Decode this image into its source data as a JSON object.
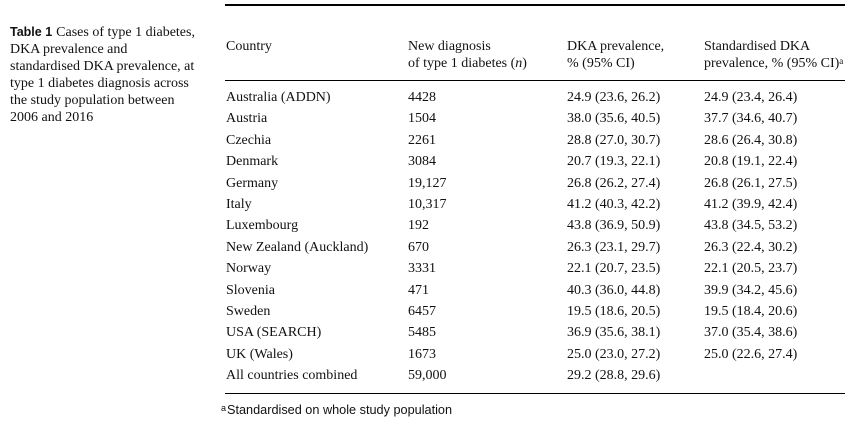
{
  "caption": {
    "label": "Table 1",
    "text": "Cases of type 1 diabetes, DKA prevalence and standardised DKA prevalence, at type 1 diabetes diagnosis across the study population between 2006 and 2016"
  },
  "table": {
    "headers": {
      "country": "Country",
      "new_diagnoses": {
        "line1": "New diagnosis",
        "line2_before": "of type 1 diabetes (",
        "line2_italic": "n",
        "line2_after": ")"
      },
      "dka_prevalence": {
        "line1": "DKA prevalence,",
        "line2": "% (95% CI)"
      },
      "standardised_dka_prevalence": {
        "line1": "Standardised DKA",
        "line2": "prevalence, % (95% CI)",
        "footnote_marker": "a"
      }
    },
    "rows": [
      {
        "country": "Australia (ADDN)",
        "new_diagnoses": "4428",
        "dka_prevalence": "24.9 (23.6, 26.2)",
        "standardised_dka_prevalence": "24.9 (23.4, 26.4)"
      },
      {
        "country": "Austria",
        "new_diagnoses": "1504",
        "dka_prevalence": "38.0 (35.6, 40.5)",
        "standardised_dka_prevalence": "37.7 (34.6, 40.7)"
      },
      {
        "country": "Czechia",
        "new_diagnoses": "2261",
        "dka_prevalence": "28.8 (27.0, 30.7)",
        "standardised_dka_prevalence": "28.6 (26.4, 30.8)"
      },
      {
        "country": "Denmark",
        "new_diagnoses": "3084",
        "dka_prevalence": "20.7 (19.3, 22.1)",
        "standardised_dka_prevalence": "20.8 (19.1, 22.4)"
      },
      {
        "country": "Germany",
        "new_diagnoses": "19,127",
        "dka_prevalence": "26.8 (26.2, 27.4)",
        "standardised_dka_prevalence": "26.8 (26.1, 27.5)"
      },
      {
        "country": "Italy",
        "new_diagnoses": "10,317",
        "dka_prevalence": "41.2 (40.3, 42.2)",
        "standardised_dka_prevalence": "41.2 (39.9, 42.4)"
      },
      {
        "country": "Luxembourg",
        "new_diagnoses": "192",
        "dka_prevalence": "43.8 (36.9, 50.9)",
        "standardised_dka_prevalence": "43.8 (34.5, 53.2)"
      },
      {
        "country": "New Zealand (Auckland)",
        "new_diagnoses": "670",
        "dka_prevalence": "26.3 (23.1, 29.7)",
        "standardised_dka_prevalence": "26.3 (22.4, 30.2)"
      },
      {
        "country": "Norway",
        "new_diagnoses": "3331",
        "dka_prevalence": "22.1 (20.7, 23.5)",
        "standardised_dka_prevalence": "22.1 (20.5, 23.7)"
      },
      {
        "country": "Slovenia",
        "new_diagnoses": "471",
        "dka_prevalence": "40.3 (36.0, 44.8)",
        "standardised_dka_prevalence": "39.9 (34.2, 45.6)"
      },
      {
        "country": "Sweden",
        "new_diagnoses": "6457",
        "dka_prevalence": "19.5 (18.6, 20.5)",
        "standardised_dka_prevalence": "19.5 (18.4, 20.6)"
      },
      {
        "country": "USA (SEARCH)",
        "new_diagnoses": "5485",
        "dka_prevalence": "36.9 (35.6, 38.1)",
        "standardised_dka_prevalence": "37.0 (35.4, 38.6)"
      },
      {
        "country": "UK (Wales)",
        "new_diagnoses": "1673",
        "dka_prevalence": "25.0 (23.0, 27.2)",
        "standardised_dka_prevalence": "25.0 (22.6, 27.4)"
      },
      {
        "country": "All countries combined",
        "new_diagnoses": "59,000",
        "dka_prevalence": "29.2 (28.8, 29.6)"
      }
    ]
  },
  "footnote": {
    "marker": "a",
    "text": "Standardised on whole study population"
  }
}
